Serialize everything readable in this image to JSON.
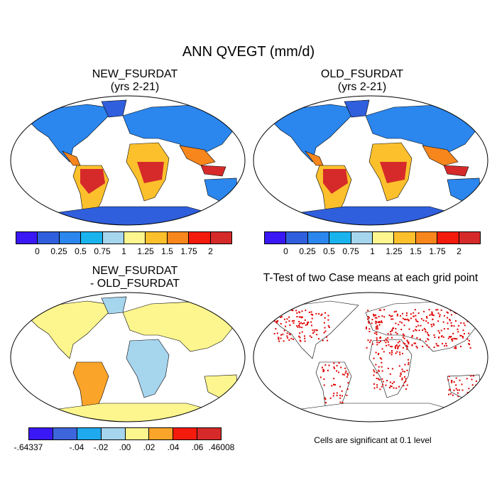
{
  "title": "ANN QVEGT (mm/d)",
  "panels": [
    {
      "title_line1": "NEW_FSURDAT",
      "title_line2": "(yrs 2-21)"
    },
    {
      "title_line1": "OLD_FSURDAT",
      "title_line2": "(yrs 2-21)"
    },
    {
      "title_line1": "NEW_FSURDAT",
      "title_line2": "- OLD_FSURDAT"
    },
    {
      "title_line1": "T-Test of two Case means at each grid point",
      "note": "Cells are significant at 0.1 level"
    }
  ],
  "colorbar_main": {
    "colors": [
      "#3a18f5",
      "#2f5fdc",
      "#2b86ee",
      "#19b4ee",
      "#a6d5ee",
      "#fdf68e",
      "#fbc02c",
      "#f7861c",
      "#f41a0c",
      "#d62a2a"
    ],
    "labels": [
      "0",
      "0.25",
      "0.5",
      "0.75",
      "1",
      "1.25",
      "1.5",
      "1.75",
      "2"
    ]
  },
  "colorbar_diff": {
    "colors": [
      "#3a18f5",
      "#3d65dc",
      "#1fa9ee",
      "#a6d5ee",
      "#fdf68e",
      "#fba42a",
      "#f41a0c",
      "#d62a2a"
    ],
    "labels": [
      "-.64337",
      "-.04",
      "-.02",
      ".00",
      ".02",
      ".04",
      ".06",
      ".46008"
    ]
  },
  "map_colors": {
    "ocean": "#ffffff",
    "cold": "#2f5fdc",
    "cool": "#2b86ee",
    "mid": "#19b4ee",
    "warm": "#fbc02c",
    "hot": "#f7861c",
    "tropical": "#d62a2a",
    "diff_base": "#a6d5ee",
    "diff_pos": "#fdf68e",
    "sig": "#e00000"
  }
}
